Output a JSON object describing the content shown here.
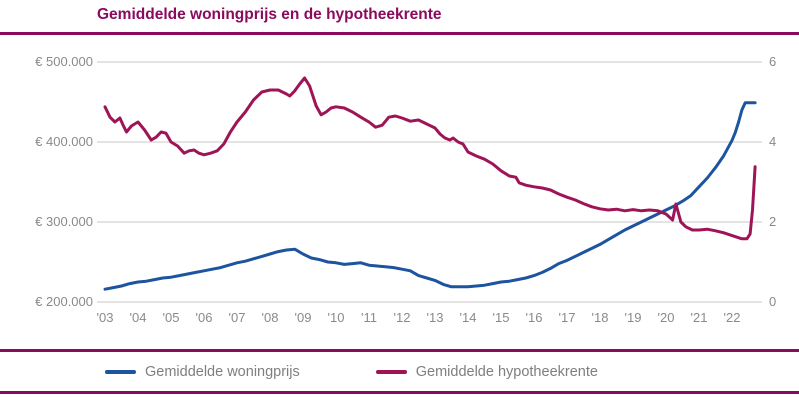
{
  "page": {
    "title": "Gemiddelde woningprijs en de hypotheekrente"
  },
  "colors": {
    "title": "#8a0a5e",
    "rule": "#8a0a5e",
    "price_line": "#1d549f",
    "rate_line": "#9e1457",
    "gridline": "#c9c9c9",
    "axis_text": "#8a8a8a",
    "legend_text": "#7f7f7f"
  },
  "legend": {
    "items": [
      {
        "label": "Gemiddelde woningprijs",
        "color": "#1d549f"
      },
      {
        "label": "Gemiddelde hypotheekrente",
        "color": "#9e1457"
      }
    ]
  },
  "axes": {
    "left": {
      "tick_labels": [
        "€ 500.000",
        "€ 400.000",
        "€ 300.000",
        "€ 200.000"
      ],
      "tick_values": [
        500000,
        400000,
        300000,
        200000
      ]
    },
    "right": {
      "tick_labels": [
        "6",
        "4",
        "2",
        "0"
      ],
      "tick_values": [
        6,
        4,
        2,
        0
      ]
    },
    "x": {
      "tick_labels": [
        "'03",
        "'04",
        "'05",
        "'06",
        "'07",
        "'08",
        "'09",
        "'10",
        "'11",
        "'12",
        "'13",
        "'14",
        "'15",
        "'16",
        "'17",
        "'18",
        "'19",
        "'20",
        "'21",
        "'22"
      ],
      "tick_years": [
        2003,
        2004,
        2005,
        2006,
        2007,
        2008,
        2009,
        2010,
        2011,
        2012,
        2013,
        2014,
        2015,
        2016,
        2017,
        2018,
        2019,
        2020,
        2021,
        2022
      ]
    }
  },
  "chart_data": {
    "type": "line",
    "title": "Gemiddelde woningprijs en de hypotheekrente",
    "grid": "horizontal",
    "legend_position": "bottom",
    "x_range": [
      2003.0,
      2022.75
    ],
    "left_ylim": [
      200000,
      500000
    ],
    "right_ylim": [
      0,
      6
    ],
    "series": [
      {
        "name": "Gemiddelde woningprijs",
        "axis": "left",
        "unit": "EUR",
        "color": "#1d549f",
        "points": [
          [
            2003.0,
            216000
          ],
          [
            2003.25,
            218000
          ],
          [
            2003.5,
            220000
          ],
          [
            2003.75,
            223000
          ],
          [
            2004.0,
            225000
          ],
          [
            2004.25,
            226000
          ],
          [
            2004.5,
            228000
          ],
          [
            2004.75,
            230000
          ],
          [
            2005.0,
            231000
          ],
          [
            2005.25,
            233000
          ],
          [
            2005.5,
            235000
          ],
          [
            2005.75,
            237000
          ],
          [
            2006.0,
            239000
          ],
          [
            2006.25,
            241000
          ],
          [
            2006.5,
            243000
          ],
          [
            2006.75,
            246000
          ],
          [
            2007.0,
            249000
          ],
          [
            2007.25,
            251000
          ],
          [
            2007.5,
            254000
          ],
          [
            2007.75,
            257000
          ],
          [
            2008.0,
            260000
          ],
          [
            2008.25,
            263000
          ],
          [
            2008.5,
            265000
          ],
          [
            2008.75,
            266000
          ],
          [
            2009.0,
            260000
          ],
          [
            2009.25,
            255000
          ],
          [
            2009.5,
            253000
          ],
          [
            2009.75,
            250000
          ],
          [
            2010.0,
            249000
          ],
          [
            2010.25,
            247000
          ],
          [
            2010.5,
            248000
          ],
          [
            2010.75,
            249000
          ],
          [
            2011.0,
            246000
          ],
          [
            2011.25,
            245000
          ],
          [
            2011.5,
            244000
          ],
          [
            2011.75,
            243000
          ],
          [
            2012.0,
            241000
          ],
          [
            2012.25,
            239000
          ],
          [
            2012.5,
            233000
          ],
          [
            2012.75,
            230000
          ],
          [
            2013.0,
            227000
          ],
          [
            2013.25,
            222000
          ],
          [
            2013.5,
            219000
          ],
          [
            2013.75,
            219000
          ],
          [
            2014.0,
            219000
          ],
          [
            2014.25,
            220000
          ],
          [
            2014.5,
            221000
          ],
          [
            2014.75,
            223000
          ],
          [
            2015.0,
            225000
          ],
          [
            2015.25,
            226000
          ],
          [
            2015.5,
            228000
          ],
          [
            2015.75,
            230000
          ],
          [
            2016.0,
            233000
          ],
          [
            2016.25,
            237000
          ],
          [
            2016.5,
            242000
          ],
          [
            2016.75,
            248000
          ],
          [
            2017.0,
            252000
          ],
          [
            2017.25,
            257000
          ],
          [
            2017.5,
            262000
          ],
          [
            2017.75,
            267000
          ],
          [
            2018.0,
            272000
          ],
          [
            2018.25,
            278000
          ],
          [
            2018.5,
            284000
          ],
          [
            2018.75,
            290000
          ],
          [
            2019.0,
            295000
          ],
          [
            2019.25,
            300000
          ],
          [
            2019.5,
            305000
          ],
          [
            2019.75,
            310000
          ],
          [
            2020.0,
            315000
          ],
          [
            2020.25,
            320000
          ],
          [
            2020.5,
            326000
          ],
          [
            2020.75,
            333000
          ],
          [
            2021.0,
            344000
          ],
          [
            2021.25,
            355000
          ],
          [
            2021.5,
            368000
          ],
          [
            2021.75,
            383000
          ],
          [
            2022.0,
            402000
          ],
          [
            2022.1,
            412000
          ],
          [
            2022.2,
            425000
          ],
          [
            2022.3,
            440000
          ],
          [
            2022.4,
            449000
          ],
          [
            2022.55,
            449000
          ],
          [
            2022.7,
            449000
          ]
        ]
      },
      {
        "name": "Gemiddelde hypotheekrente",
        "axis": "right",
        "unit": "%",
        "color": "#9e1457",
        "points": [
          [
            2003.0,
            4.88
          ],
          [
            2003.15,
            4.62
          ],
          [
            2003.3,
            4.5
          ],
          [
            2003.45,
            4.6
          ],
          [
            2003.55,
            4.42
          ],
          [
            2003.65,
            4.25
          ],
          [
            2003.8,
            4.4
          ],
          [
            2004.0,
            4.5
          ],
          [
            2004.2,
            4.3
          ],
          [
            2004.4,
            4.05
          ],
          [
            2004.55,
            4.12
          ],
          [
            2004.7,
            4.25
          ],
          [
            2004.85,
            4.22
          ],
          [
            2005.0,
            4.0
          ],
          [
            2005.2,
            3.9
          ],
          [
            2005.4,
            3.72
          ],
          [
            2005.55,
            3.78
          ],
          [
            2005.7,
            3.8
          ],
          [
            2005.85,
            3.72
          ],
          [
            2006.0,
            3.68
          ],
          [
            2006.2,
            3.72
          ],
          [
            2006.4,
            3.78
          ],
          [
            2006.6,
            3.95
          ],
          [
            2006.8,
            4.25
          ],
          [
            2007.0,
            4.5
          ],
          [
            2007.25,
            4.75
          ],
          [
            2007.5,
            5.05
          ],
          [
            2007.75,
            5.25
          ],
          [
            2008.0,
            5.3
          ],
          [
            2008.25,
            5.3
          ],
          [
            2008.5,
            5.2
          ],
          [
            2008.6,
            5.15
          ],
          [
            2008.75,
            5.28
          ],
          [
            2008.9,
            5.45
          ],
          [
            2009.05,
            5.6
          ],
          [
            2009.2,
            5.4
          ],
          [
            2009.4,
            4.9
          ],
          [
            2009.55,
            4.68
          ],
          [
            2009.7,
            4.75
          ],
          [
            2009.85,
            4.85
          ],
          [
            2010.0,
            4.88
          ],
          [
            2010.25,
            4.85
          ],
          [
            2010.5,
            4.75
          ],
          [
            2010.75,
            4.62
          ],
          [
            2011.0,
            4.5
          ],
          [
            2011.2,
            4.37
          ],
          [
            2011.4,
            4.42
          ],
          [
            2011.6,
            4.62
          ],
          [
            2011.8,
            4.65
          ],
          [
            2012.0,
            4.6
          ],
          [
            2012.25,
            4.52
          ],
          [
            2012.5,
            4.55
          ],
          [
            2012.75,
            4.45
          ],
          [
            2013.0,
            4.35
          ],
          [
            2013.15,
            4.2
          ],
          [
            2013.3,
            4.1
          ],
          [
            2013.45,
            4.05
          ],
          [
            2013.55,
            4.1
          ],
          [
            2013.7,
            4.0
          ],
          [
            2013.85,
            3.95
          ],
          [
            2014.0,
            3.75
          ],
          [
            2014.25,
            3.65
          ],
          [
            2014.5,
            3.57
          ],
          [
            2014.75,
            3.45
          ],
          [
            2015.0,
            3.28
          ],
          [
            2015.25,
            3.15
          ],
          [
            2015.45,
            3.12
          ],
          [
            2015.55,
            2.98
          ],
          [
            2015.75,
            2.92
          ],
          [
            2016.0,
            2.88
          ],
          [
            2016.25,
            2.85
          ],
          [
            2016.5,
            2.8
          ],
          [
            2016.75,
            2.7
          ],
          [
            2017.0,
            2.62
          ],
          [
            2017.25,
            2.55
          ],
          [
            2017.5,
            2.46
          ],
          [
            2017.75,
            2.38
          ],
          [
            2018.0,
            2.33
          ],
          [
            2018.25,
            2.3
          ],
          [
            2018.5,
            2.32
          ],
          [
            2018.75,
            2.28
          ],
          [
            2019.0,
            2.31
          ],
          [
            2019.25,
            2.28
          ],
          [
            2019.5,
            2.3
          ],
          [
            2019.75,
            2.28
          ],
          [
            2020.0,
            2.2
          ],
          [
            2020.2,
            2.05
          ],
          [
            2020.3,
            2.45
          ],
          [
            2020.45,
            2.0
          ],
          [
            2020.6,
            1.88
          ],
          [
            2020.8,
            1.8
          ],
          [
            2021.0,
            1.8
          ],
          [
            2021.25,
            1.82
          ],
          [
            2021.5,
            1.78
          ],
          [
            2021.75,
            1.73
          ],
          [
            2022.0,
            1.66
          ],
          [
            2022.15,
            1.62
          ],
          [
            2022.3,
            1.58
          ],
          [
            2022.45,
            1.58
          ],
          [
            2022.55,
            1.7
          ],
          [
            2022.62,
            2.3
          ],
          [
            2022.7,
            3.38
          ]
        ]
      }
    ]
  }
}
